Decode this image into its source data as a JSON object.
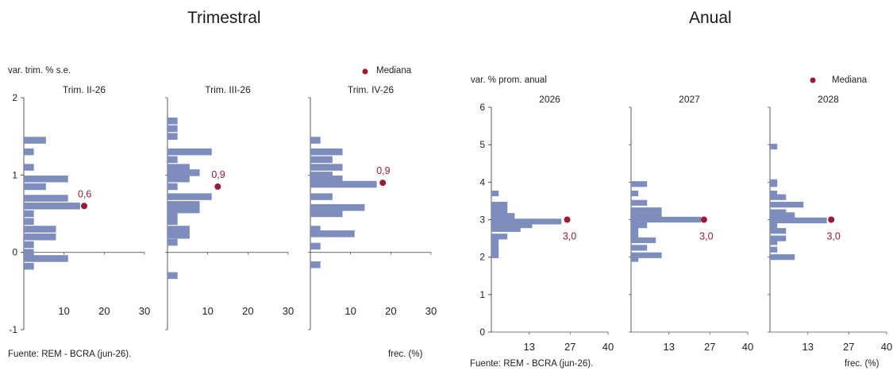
{
  "titles": {
    "quarterly": "Trimestral",
    "annual": "Anual"
  },
  "colors": {
    "bar": "#7c8dbe",
    "median": "#9b1a35",
    "axis": "#555555"
  },
  "panels": [
    {
      "ylabel": "var. trim. % s.e.",
      "legend": "Mediana",
      "source": "Fuente: REM - BCRA (jun-26).",
      "xlabel": "frec. (%)"
    },
    {
      "ylabel": "var. % prom. anual",
      "legend": "Mediana",
      "source": "Fuente: REM - BCRA (jun-26).",
      "xlabel": "frec. (%)"
    }
  ],
  "chart_data": [
    {
      "type": "bar",
      "orientation": "horizontal",
      "ylabel": "var. trim. % s.e.",
      "xlabel": "frec. (%)",
      "ylim": [
        -1,
        2
      ],
      "yticks": [
        "-1",
        "0",
        "1",
        "2"
      ],
      "xlim": [
        0,
        30
      ],
      "xticks": [
        "10",
        "20",
        "30"
      ],
      "legend": "Mediana",
      "subplots": [
        {
          "title": "Trim. II-26",
          "median": 0.6,
          "median_label": "0,6",
          "median_x": 15,
          "bars": [
            {
              "y": 1.45,
              "v": 5.5
            },
            {
              "y": 1.3,
              "v": 2.5
            },
            {
              "y": 1.1,
              "v": 2.5
            },
            {
              "y": 0.95,
              "v": 11
            },
            {
              "y": 0.85,
              "v": 5.5
            },
            {
              "y": 0.7,
              "v": 11
            },
            {
              "y": 0.6,
              "v": 14
            },
            {
              "y": 0.5,
              "v": 2.5
            },
            {
              "y": 0.4,
              "v": 2.5
            },
            {
              "y": 0.3,
              "v": 8
            },
            {
              "y": 0.2,
              "v": 8
            },
            {
              "y": 0.1,
              "v": 2.5
            },
            {
              "y": 0.0,
              "v": 2.5
            },
            {
              "y": -0.08,
              "v": 11
            },
            {
              "y": -0.18,
              "v": 2.5
            }
          ]
        },
        {
          "title": "Trim. III-26",
          "median": 0.85,
          "median_label": "0,9",
          "median_x": 12.5,
          "bars": [
            {
              "y": 1.7,
              "v": 2.5
            },
            {
              "y": 1.6,
              "v": 2.5
            },
            {
              "y": 1.5,
              "v": 2.5
            },
            {
              "y": 1.3,
              "v": 11
            },
            {
              "y": 1.2,
              "v": 2.5
            },
            {
              "y": 1.1,
              "v": 5.5
            },
            {
              "y": 1.03,
              "v": 8
            },
            {
              "y": 0.95,
              "v": 5.5
            },
            {
              "y": 0.85,
              "v": 2.5
            },
            {
              "y": 0.72,
              "v": 11
            },
            {
              "y": 0.62,
              "v": 8
            },
            {
              "y": 0.55,
              "v": 8
            },
            {
              "y": 0.47,
              "v": 2.5
            },
            {
              "y": 0.4,
              "v": 2.5
            },
            {
              "y": 0.3,
              "v": 5.5
            },
            {
              "y": 0.22,
              "v": 5.5
            },
            {
              "y": 0.13,
              "v": 2.5
            },
            {
              "y": -0.3,
              "v": 2.5
            }
          ]
        },
        {
          "title": "Trim. IV-26",
          "median": 0.9,
          "median_label": "0,9",
          "median_x": 18,
          "bars": [
            {
              "y": 1.45,
              "v": 2.5
            },
            {
              "y": 1.3,
              "v": 8
            },
            {
              "y": 1.2,
              "v": 5.5
            },
            {
              "y": 1.1,
              "v": 8
            },
            {
              "y": 1.0,
              "v": 5.5
            },
            {
              "y": 0.95,
              "v": 8
            },
            {
              "y": 0.88,
              "v": 16.5
            },
            {
              "y": 0.72,
              "v": 5.5
            },
            {
              "y": 0.58,
              "v": 13.5
            },
            {
              "y": 0.5,
              "v": 8
            },
            {
              "y": 0.3,
              "v": 2.5
            },
            {
              "y": 0.24,
              "v": 11
            },
            {
              "y": 0.08,
              "v": 2.5
            },
            {
              "y": -0.16,
              "v": 2.5
            }
          ]
        }
      ]
    },
    {
      "type": "bar",
      "orientation": "horizontal",
      "ylabel": "var. % prom. anual",
      "xlabel": "frec. (%)",
      "ylim": [
        0,
        6
      ],
      "yticks": [
        "0",
        "1",
        "2",
        "3",
        "4",
        "5",
        "6"
      ],
      "xlim": [
        0,
        40
      ],
      "xticks": [
        "13",
        "27",
        "40"
      ],
      "legend": "Mediana",
      "subplots": [
        {
          "title": "2026",
          "median": 3.0,
          "median_label": "3,0",
          "median_x": 26,
          "bars": [
            {
              "y": 3.7,
              "v": 2.5
            },
            {
              "y": 3.4,
              "v": 5.5
            },
            {
              "y": 3.3,
              "v": 5.5
            },
            {
              "y": 3.2,
              "v": 5.5
            },
            {
              "y": 3.1,
              "v": 8
            },
            {
              "y": 3.05,
              "v": 5.5
            },
            {
              "y": 2.95,
              "v": 24
            },
            {
              "y": 2.85,
              "v": 14
            },
            {
              "y": 2.75,
              "v": 10
            },
            {
              "y": 2.55,
              "v": 5.5
            },
            {
              "y": 2.45,
              "v": 2.5
            },
            {
              "y": 2.3,
              "v": 2.5
            },
            {
              "y": 2.15,
              "v": 2.5
            },
            {
              "y": 2.05,
              "v": 2.5
            }
          ]
        },
        {
          "title": "2027",
          "median": 3.0,
          "median_label": "3,0",
          "median_x": 25,
          "bars": [
            {
              "y": 3.95,
              "v": 5.5
            },
            {
              "y": 3.7,
              "v": 2.5
            },
            {
              "y": 3.45,
              "v": 5.5
            },
            {
              "y": 3.25,
              "v": 10.5
            },
            {
              "y": 3.1,
              "v": 10.5
            },
            {
              "y": 3.0,
              "v": 24
            },
            {
              "y": 2.85,
              "v": 5.5
            },
            {
              "y": 2.75,
              "v": 2.5
            },
            {
              "y": 2.6,
              "v": 2.5
            },
            {
              "y": 2.45,
              "v": 8.5
            },
            {
              "y": 2.25,
              "v": 5.5
            },
            {
              "y": 2.05,
              "v": 10.5
            },
            {
              "y": 1.95,
              "v": 2.5
            }
          ]
        },
        {
          "title": "2028",
          "median": 3.0,
          "median_label": "3,0",
          "median_x": 21,
          "bars": [
            {
              "y": 4.95,
              "v": 2.5
            },
            {
              "y": 4.0,
              "v": 2.5
            },
            {
              "y": 3.95,
              "v": 2.5
            },
            {
              "y": 3.7,
              "v": 2.5
            },
            {
              "y": 3.6,
              "v": 5.5
            },
            {
              "y": 3.4,
              "v": 11.5
            },
            {
              "y": 3.2,
              "v": 5.5
            },
            {
              "y": 3.12,
              "v": 8.5
            },
            {
              "y": 2.98,
              "v": 19.5
            },
            {
              "y": 2.85,
              "v": 2.5
            },
            {
              "y": 2.7,
              "v": 5.5
            },
            {
              "y": 2.5,
              "v": 5.5
            },
            {
              "y": 2.4,
              "v": 2.5
            },
            {
              "y": 2.2,
              "v": 2.5
            },
            {
              "y": 2.0,
              "v": 8.5
            }
          ]
        }
      ]
    }
  ]
}
